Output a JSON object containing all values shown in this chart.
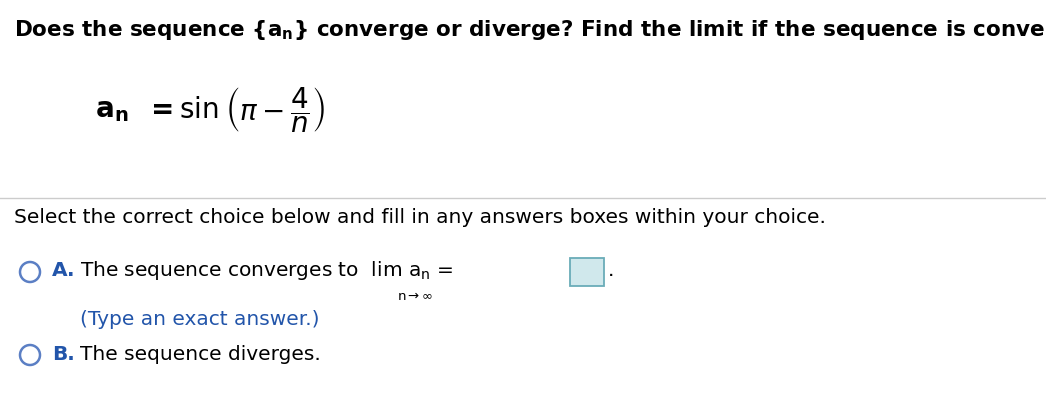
{
  "title_text": "Does the sequence {aₙ} converge or diverge? Find the limit if the sequence is convergent.",
  "select_text": "Select the correct choice below and fill in any answers boxes within your choice.",
  "choice_A_label": "A.",
  "choice_A_text": "The sequence converges to  lim aₙ =",
  "choice_A_sub": "n→∞",
  "choice_A_hint": "(Type an exact answer.)",
  "choice_B_label": "B.",
  "choice_B_text": "The sequence diverges.",
  "circle_color": "#5b7fc4",
  "label_color": "#2255aa",
  "hint_color": "#2255aa",
  "text_color": "#000000",
  "bg_color": "#ffffff",
  "box_fill": "#d0e8ec",
  "box_edge": "#6aacb8",
  "separator_color": "#cccccc",
  "font_size_title": 15.5,
  "font_size_formula": 20,
  "font_size_select": 14.5,
  "font_size_choice": 14.5,
  "font_size_label": 14.5
}
